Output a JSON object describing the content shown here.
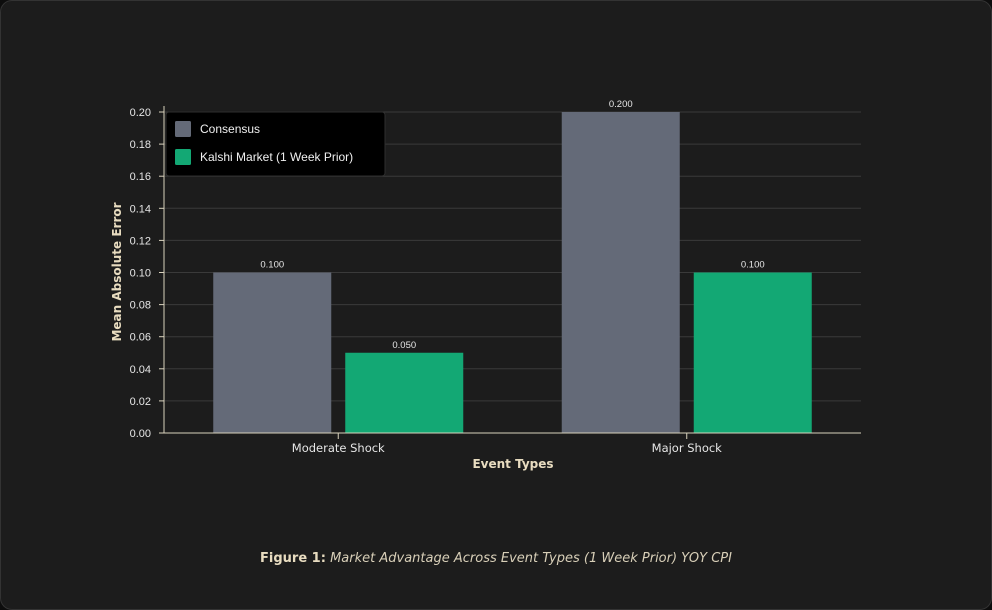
{
  "chart_data": {
    "type": "bar",
    "categories": [
      "Moderate Shock",
      "Major Shock"
    ],
    "series": [
      {
        "name": "Consensus",
        "values": [
          0.1,
          0.2
        ],
        "labels": [
          "0.100",
          "0.200"
        ],
        "color": "#646a78"
      },
      {
        "name": "Kalshi Market (1 Week Prior)",
        "values": [
          0.05,
          0.1
        ],
        "labels": [
          "0.050",
          "0.100"
        ],
        "color": "#13a874"
      }
    ],
    "xlabel": "Event Types",
    "ylabel": "Mean Absolute Error",
    "ylim": [
      0,
      0.2
    ],
    "yticks": [
      "0.00",
      "0.02",
      "0.04",
      "0.06",
      "0.08",
      "0.10",
      "0.12",
      "0.14",
      "0.16",
      "0.18",
      "0.20"
    ],
    "grid": true,
    "legend_position": "top-left"
  },
  "caption": {
    "label": "Figure 1:",
    "text": "Market Advantage Across Event Types (1 Week Prior) YOY CPI"
  },
  "colors": {
    "background": "#1c1c1c",
    "grid": "#3a3a3a",
    "axis": "#d9d2bd",
    "legend_background": "#000000"
  }
}
